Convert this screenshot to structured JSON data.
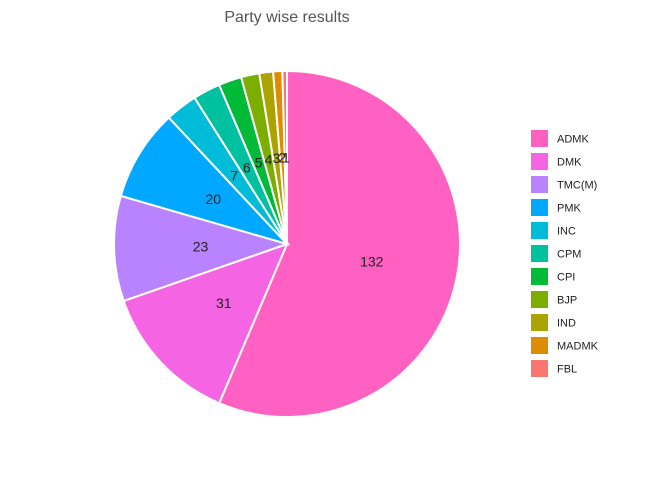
{
  "chart_data": {
    "type": "pie",
    "title": "Party wise results",
    "categories": [
      "ADMK",
      "DMK",
      "TMC(M)",
      "PMK",
      "INC",
      "CPM",
      "CPI",
      "BJP",
      "IND",
      "MADMK",
      "FBL"
    ],
    "values": [
      132,
      31,
      23,
      20,
      7,
      6,
      5,
      4,
      3,
      2,
      1
    ],
    "colors": [
      "#FF61C3",
      "#F564E3",
      "#B983FF",
      "#00A9FF",
      "#00BCD8",
      "#00C19F",
      "#00BA38",
      "#7CAE00",
      "#ABA300",
      "#DE8C00",
      "#F8766D"
    ],
    "legend_position": "right",
    "grid": false
  }
}
